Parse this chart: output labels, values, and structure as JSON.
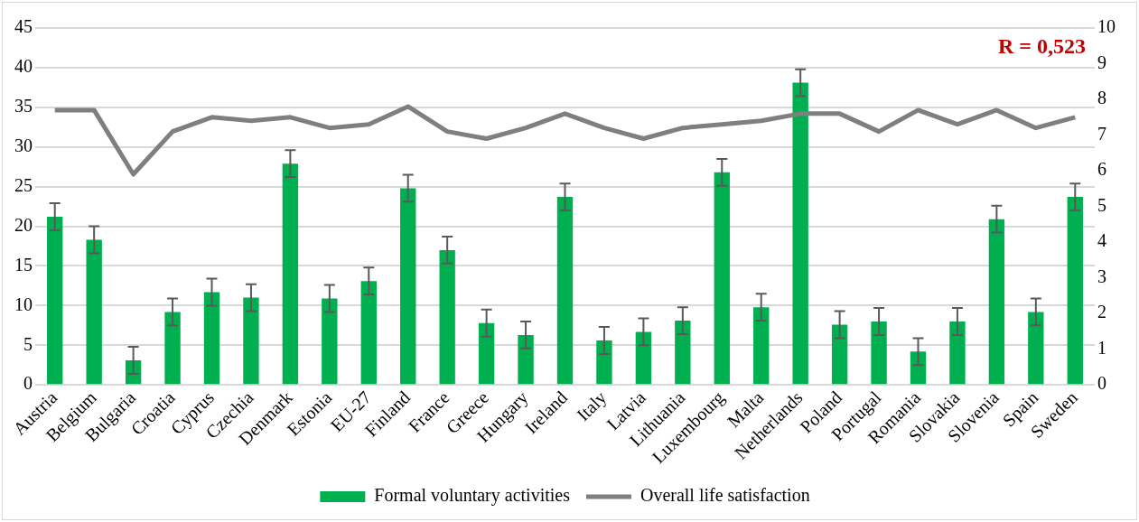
{
  "chart_data": {
    "type": "bar",
    "categories": [
      "Austria",
      "Belgium",
      "Bulgaria",
      "Croatia",
      "Cyprus",
      "Czechia",
      "Denmark",
      "Estonia",
      "EU-27",
      "Finland",
      "France",
      "Greece",
      "Hungary",
      "Ireland",
      "Italy",
      "Latvia",
      "Lithuania",
      "Luxembourg",
      "Malta",
      "Netherlands",
      "Poland",
      "Portugal",
      "Romania",
      "Slovakia",
      "Slovenia",
      "Spain",
      "Sweden"
    ],
    "series": [
      {
        "name": "Formal voluntary activities",
        "color": "#00b050",
        "values": [
          21.2,
          18.3,
          3.1,
          9.2,
          11.7,
          11.0,
          27.9,
          10.9,
          13.1,
          24.8,
          17.0,
          7.8,
          6.3,
          23.7,
          5.6,
          6.7,
          8.1,
          26.8,
          9.8,
          38.1,
          7.6,
          8.0,
          4.2,
          8.0,
          20.9,
          9.2,
          23.7
        ],
        "errors": [
          1.7,
          1.7,
          1.7,
          1.7,
          1.7,
          1.7,
          1.7,
          1.7,
          1.7,
          1.7,
          1.7,
          1.7,
          1.7,
          1.7,
          1.7,
          1.7,
          1.7,
          1.7,
          1.7,
          1.7,
          1.7,
          1.7,
          1.7,
          1.7,
          1.7,
          1.7,
          1.7
        ]
      },
      {
        "name": "Overall life satisfaction",
        "type": "line",
        "axis": "y2",
        "color": "#7f7f7f",
        "values": [
          7.7,
          7.7,
          5.9,
          7.1,
          7.5,
          7.4,
          7.5,
          7.2,
          7.3,
          7.8,
          7.1,
          6.9,
          7.2,
          7.6,
          7.2,
          6.9,
          7.2,
          7.3,
          7.4,
          7.6,
          7.6,
          7.1,
          7.7,
          7.3,
          7.7,
          7.2,
          7.5
        ]
      }
    ],
    "ylim": [
      0,
      45
    ],
    "yticks": [
      0,
      5,
      10,
      15,
      20,
      25,
      30,
      35,
      40,
      45
    ],
    "y2lim": [
      0,
      10
    ],
    "y2ticks": [
      0,
      1,
      2,
      3,
      4,
      5,
      6,
      7,
      8,
      9,
      10
    ],
    "grid": "y",
    "legend": "bottom",
    "marker": "none",
    "line_style": "solid",
    "annotations": [
      "R = 0,523"
    ]
  }
}
